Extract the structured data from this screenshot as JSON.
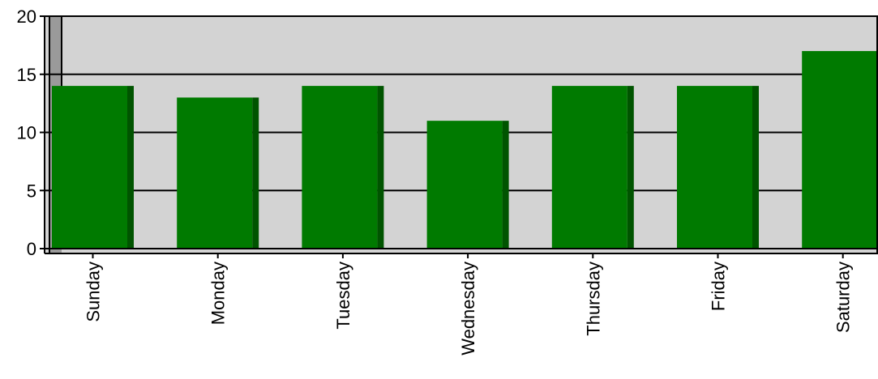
{
  "chart_data": {
    "type": "bar",
    "categories": [
      "Sunday",
      "Monday",
      "Tuesday",
      "Wednesday",
      "Thursday",
      "Friday",
      "Saturday"
    ],
    "values": [
      14,
      13,
      14,
      11,
      14,
      14,
      17
    ],
    "ylim": [
      0,
      20
    ],
    "yticks": [
      "0",
      "5",
      "10",
      "15",
      "20"
    ],
    "grid": true,
    "legend": "none",
    "colors": {
      "bar": "#007a00",
      "bar_side": "#005400",
      "plot_background": "#d3d3d3",
      "wall": "#9a9a9a"
    }
  }
}
